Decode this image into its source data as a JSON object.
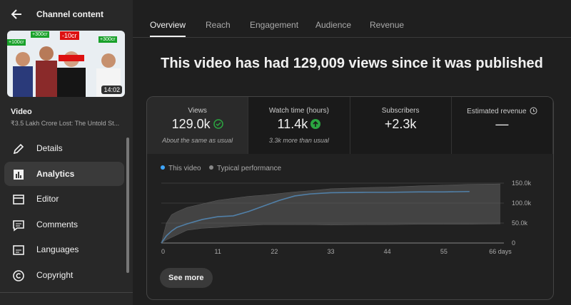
{
  "sidebar": {
    "header": "Channel content",
    "thumbnail": {
      "badges": [
        "+100cr",
        "+300cr",
        "-10cr",
        "+300cr"
      ],
      "duration": "14:02"
    },
    "video_label": "Video",
    "video_title": "₹3.5 Lakh Crore Lost: The Untold St...",
    "nav": [
      "Details",
      "Analytics",
      "Editor",
      "Comments",
      "Languages",
      "Copyright"
    ],
    "active_nav": 1
  },
  "tabs": [
    "Overview",
    "Reach",
    "Engagement",
    "Audience",
    "Revenue"
  ],
  "active_tab": 0,
  "headline": "This video has had 129,009 views since it was published",
  "metrics": [
    {
      "label": "Views",
      "value": "129.0k",
      "note": "About the same as usual"
    },
    {
      "label": "Watch time (hours)",
      "value": "11.4k",
      "note": "3.3k more than usual"
    },
    {
      "label": "Subscribers",
      "value": "+2.3k"
    },
    {
      "label": "Estimated revenue",
      "value": "—"
    }
  ],
  "chart_data": {
    "type": "line",
    "x": [
      0,
      1,
      2,
      3,
      5,
      8,
      11,
      14,
      17,
      20,
      23,
      26,
      29,
      33,
      40,
      44,
      50,
      55,
      60,
      66
    ],
    "series": [
      {
        "name": "This video",
        "color": "#3ea6ff",
        "values": [
          0,
          18000,
          30000,
          39000,
          48000,
          59000,
          66000,
          68000,
          79000,
          93000,
          107000,
          118000,
          123000,
          126000,
          127000,
          127000,
          128000,
          128000,
          129000,
          null
        ]
      },
      {
        "name": "Typical performance",
        "color": "#606060",
        "high": [
          0,
          50000,
          71000,
          78000,
          89000,
          98000,
          107000,
          112000,
          117000,
          120000,
          124000,
          128000,
          131000,
          136000,
          139000,
          140000,
          143000,
          145000,
          147000,
          148000
        ],
        "low": [
          0,
          8000,
          14000,
          20000,
          32000,
          37000,
          39000,
          42000,
          44000,
          46000,
          46000,
          46000,
          46000,
          45000,
          46000,
          46000,
          47000,
          47000,
          47000,
          48000
        ]
      }
    ],
    "xlim": [
      0,
      66
    ],
    "xticks": [
      0,
      11,
      22,
      33,
      44,
      55,
      {
        "value": 66,
        "label": "66 days"
      }
    ],
    "ylim": [
      0,
      150000
    ],
    "yticks": [
      0,
      {
        "value": 50000,
        "label": "50.0k"
      },
      {
        "value": 100000,
        "label": "100.0k"
      },
      {
        "value": 150000,
        "label": "150.0k"
      }
    ],
    "grid": true
  },
  "button": "See more"
}
